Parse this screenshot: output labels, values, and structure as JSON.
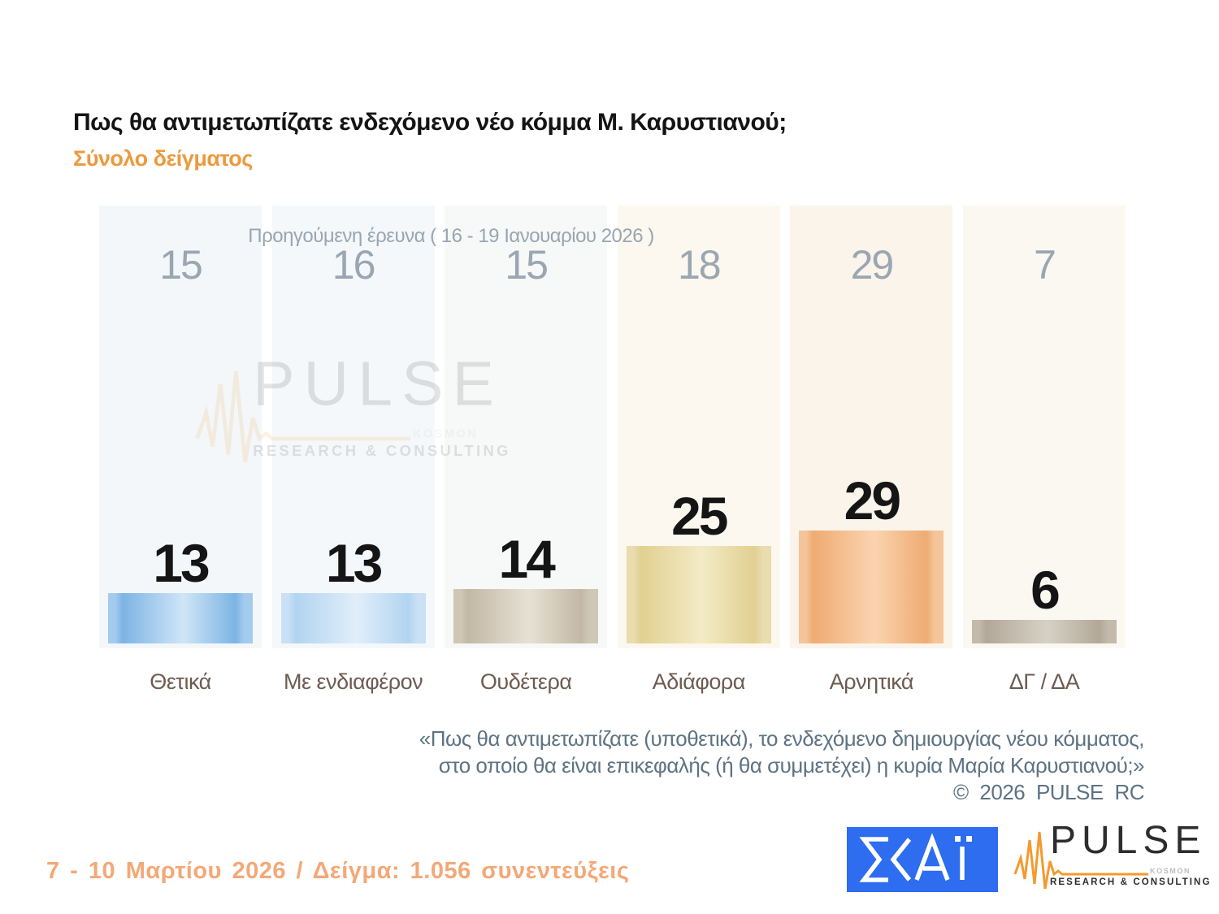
{
  "chart_data": {
    "type": "bar",
    "title": "Πως θα αντιμετωπίζατε ενδεχόμενο νέο κόμμα Μ. Καρυστιανού;",
    "subtitle": "Σύνολο δείγματος",
    "categories": [
      "Θετικά",
      "Με ενδιαφέρον",
      "Ουδέτερα",
      "Αδιάφορα",
      "Αρνητικά",
      "ΔΓ / ΔΑ"
    ],
    "series": [
      {
        "name": "current",
        "values": [
          13,
          13,
          14,
          25,
          29,
          6
        ]
      },
      {
        "name": "previous",
        "label": "Προηγούμενη έρευνα ( 16 - 19 Ιανουαρίου 2026 )",
        "values": [
          15,
          16,
          15,
          18,
          29,
          7
        ]
      }
    ],
    "grid": false,
    "legend_position": "none",
    "value_labels": "above-bars",
    "bar_colors": [
      {
        "side": "#a3cbee",
        "dark": "#7db4e4",
        "light": "#cfe5f7"
      },
      {
        "side": "#c9e0f6",
        "dark": "#b2d4f0",
        "light": "#e0eefa"
      },
      {
        "side": "#cfc7b6",
        "dark": "#c2b8a5",
        "light": "#e7e1d4"
      },
      {
        "side": "#e9dcae",
        "dark": "#e1d091",
        "light": "#f3ebc6"
      },
      {
        "side": "#f4c59a",
        "dark": "#efab72",
        "light": "#fad4b0"
      },
      {
        "side": "#c3baac",
        "dark": "#b2a899",
        "light": "#d7d1c5"
      }
    ],
    "column_bg": [
      "#f3f7fa",
      "#f4f8fb",
      "#f7f8f8",
      "#fcf8ef",
      "#fbf4ea",
      "#fbf8f1"
    ]
  },
  "footnote": {
    "line1": "«Πως θα αντιμετωπίζατε (υποθετικά), το ενδεχόμενο δημιουργίας νέου κόμματος,",
    "line2": "στο οποίο θα είναι επικεφαλής (ή θα συμμετέχει) η κυρία Μαρία Καρυστιανού;»",
    "copyright": "© 2026 PULSE RC"
  },
  "footer": {
    "survey_info": "7 - 10 Μαρτίου 2026 / Δείγμα: 1.056 συνεντεύξεις"
  },
  "logos": {
    "skai": {
      "name": "ΣΚΑΪ",
      "bg": "#2e6cf0"
    },
    "pulse": {
      "wordmark": "PULSE",
      "kosmon": "KOSMON",
      "tagline": "RESEARCH & CONSULTING",
      "orange": "#f49a2e",
      "dark": "#2d2d2d"
    }
  }
}
